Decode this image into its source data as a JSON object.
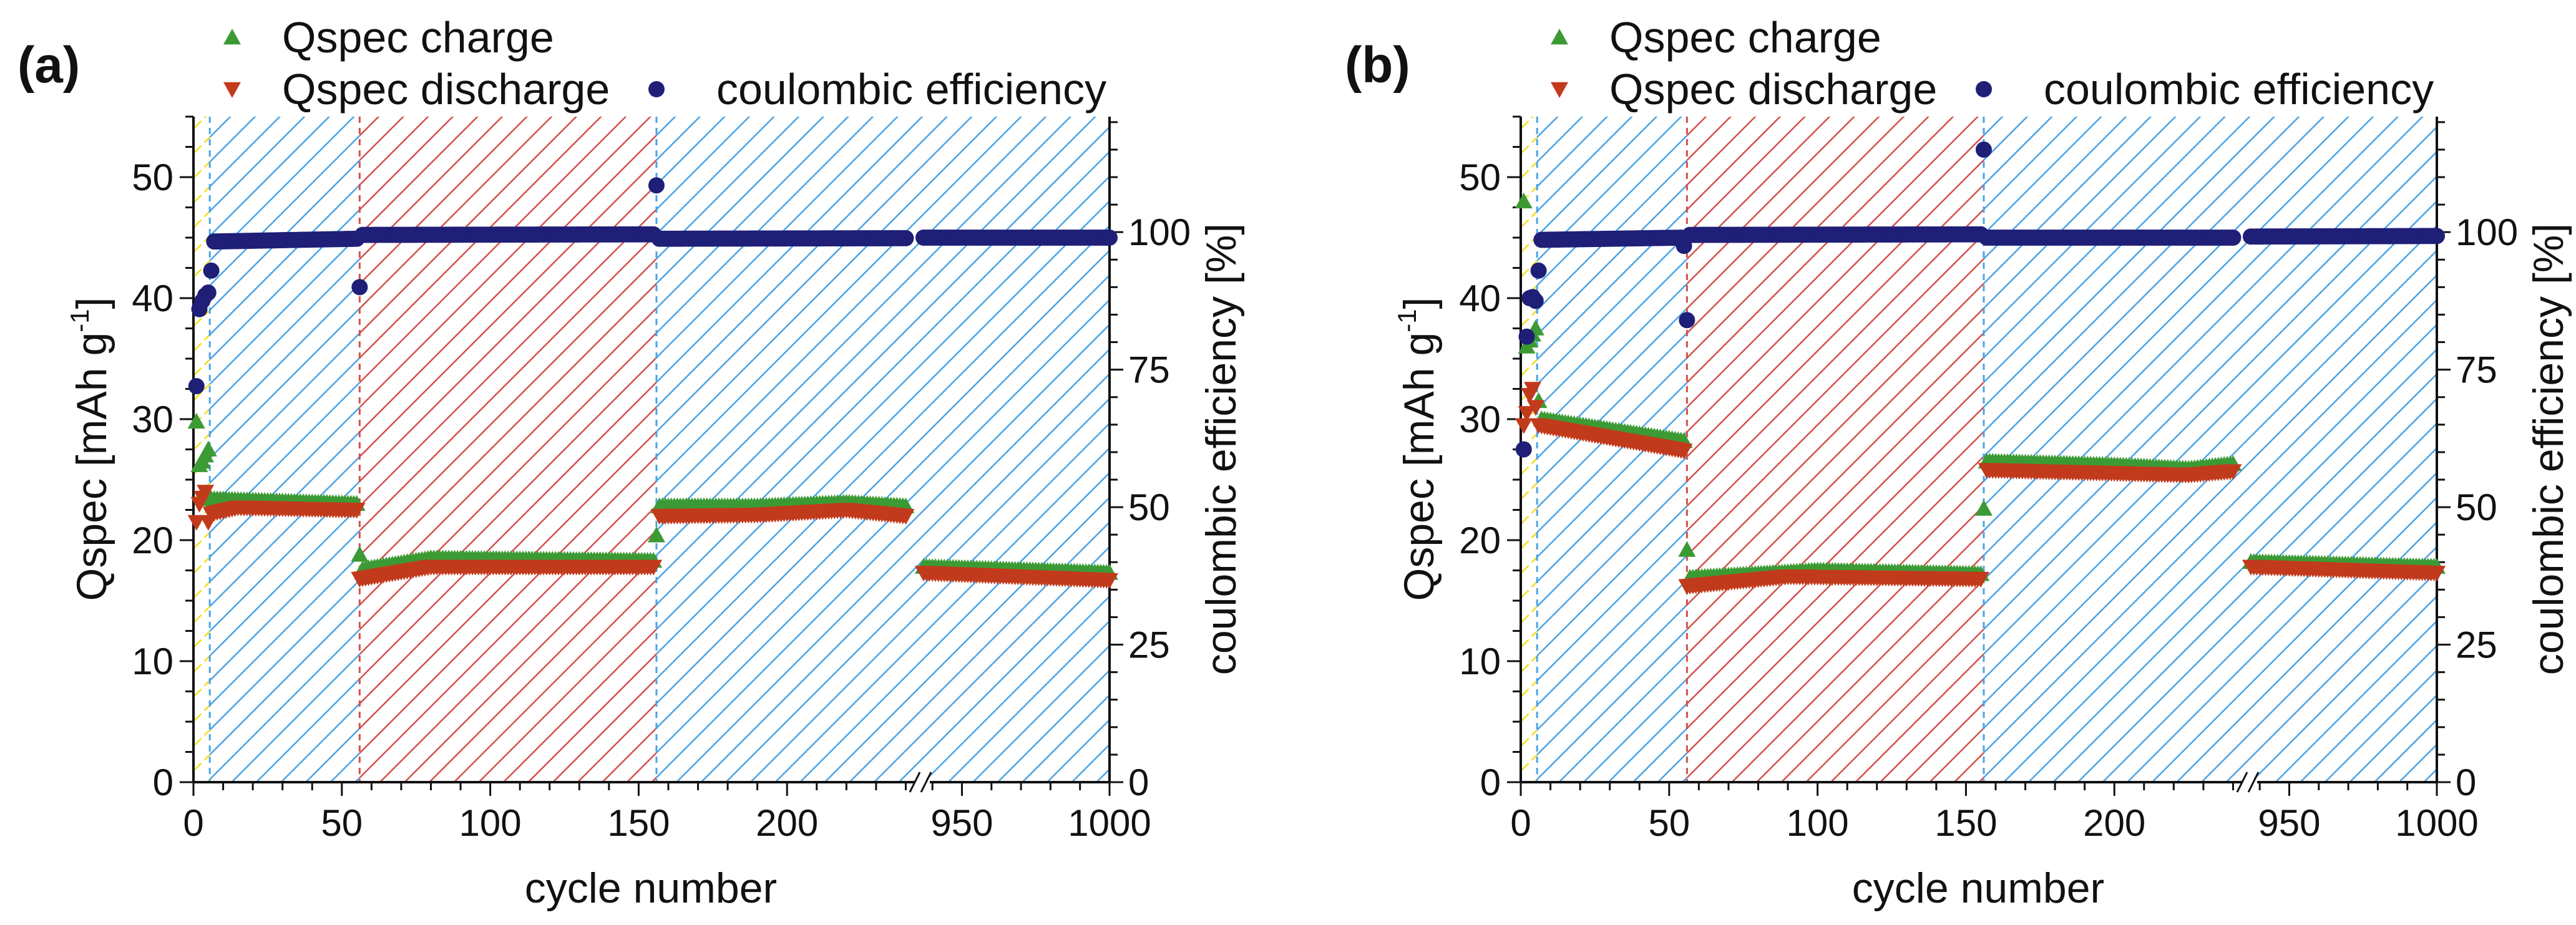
{
  "chart_data": [
    {
      "type": "scatter",
      "panel_label": "(a)",
      "xlabel": "cycle number",
      "ylabel_main": "Qspec [mAh g",
      "ylabel_sup": "-1",
      "ylabel_end": "]",
      "y2label": "coulombic efficiency [%]",
      "ylim": [
        0,
        55
      ],
      "y2lim": [
        0,
        121
      ],
      "x_segments": [
        [
          0,
          246
        ],
        [
          937,
          1000
        ]
      ],
      "x_ticks": [
        0,
        50,
        100,
        150,
        200,
        950,
        1000
      ],
      "y_ticks": [
        0,
        10,
        20,
        30,
        40,
        50
      ],
      "y2_ticks": [
        0,
        25,
        50,
        75,
        100
      ],
      "legend": [
        "Qspec charge",
        "Qspec discharge",
        "coulombic efficiency"
      ],
      "legend_placement": "top",
      "regions": [
        {
          "from": 0,
          "to": 5.5,
          "color": "#f2de1a"
        },
        {
          "from": 5.5,
          "to": 56,
          "color": "#4aa3e6"
        },
        {
          "from": 56,
          "to": 156,
          "color": "#d2504a"
        },
        {
          "from": 156,
          "to": 1000,
          "color": "#4aa3e6"
        }
      ],
      "series": [
        {
          "name": "Qspec charge",
          "marker": "triangle-up",
          "color": "#3c9a34",
          "axis": "left",
          "runs": [
            [
              [
                1,
                29.8
              ],
              [
                2,
                26.2
              ],
              [
                3,
                26.5
              ],
              [
                4,
                27
              ],
              [
                5,
                27.5
              ]
            ],
            [
              [
                6,
                23.4
              ],
              [
                55,
                23.0
              ]
            ],
            [
              [
                56,
                18.8
              ]
            ],
            [
              [
                57,
                17.6
              ],
              [
                80,
                18.5
              ],
              [
                155,
                18.3
              ]
            ],
            [
              [
                156,
                20.4
              ]
            ],
            [
              [
                157,
                22.8
              ],
              [
                190,
                22.8
              ],
              [
                220,
                23.1
              ],
              [
                240,
                22.8
              ]
            ],
            [
              [
                937,
                17.8
              ],
              [
                1000,
                17.3
              ]
            ]
          ]
        },
        {
          "name": "Qspec discharge",
          "marker": "triangle-down",
          "color": "#c23a1c",
          "axis": "left",
          "runs": [
            [
              [
                1,
                21.5
              ],
              [
                2,
                23
              ],
              [
                3,
                23.5
              ],
              [
                4,
                24
              ],
              [
                5,
                21.5
              ]
            ],
            [
              [
                6,
                22.2
              ],
              [
                15,
                22.7
              ],
              [
                55,
                22.5
              ]
            ],
            [
              [
                56,
                16.8
              ],
              [
                80,
                17.8
              ],
              [
                155,
                17.8
              ]
            ],
            [
              [
                157,
                22.0
              ],
              [
                190,
                22.1
              ],
              [
                220,
                22.5
              ],
              [
                240,
                22.0
              ]
            ],
            [
              [
                937,
                17.3
              ],
              [
                1000,
                16.7
              ]
            ]
          ]
        },
        {
          "name": "coulombic efficiency",
          "marker": "circle",
          "color": "#1f1f78",
          "axis": "right",
          "runs": [
            [
              [
                1,
                72
              ],
              [
                2,
                86
              ],
              [
                3,
                87.5
              ],
              [
                4,
                88.5
              ],
              [
                5,
                89
              ],
              [
                6,
                93
              ]
            ],
            [
              [
                7,
                98.3
              ],
              [
                55,
                98.8
              ]
            ],
            [
              [
                56,
                90
              ]
            ],
            [
              [
                57,
                99.5
              ],
              [
                155,
                99.6
              ]
            ],
            [
              [
                156,
                108.5
              ]
            ],
            [
              [
                157,
                98.8
              ],
              [
                240,
                98.9
              ]
            ],
            [
              [
                937,
                99
              ],
              [
                1000,
                99
              ]
            ]
          ]
        }
      ]
    },
    {
      "type": "scatter",
      "panel_label": "(b)",
      "xlabel": "cycle number",
      "ylabel_main": "Qspec [mAh g",
      "ylabel_sup": "-1",
      "ylabel_end": "]",
      "y2label": "coulombic efficiency [%]",
      "ylim": [
        0,
        55
      ],
      "y2lim": [
        0,
        121
      ],
      "x_segments": [
        [
          0,
          246
        ],
        [
          937,
          1000
        ]
      ],
      "x_ticks": [
        0,
        50,
        100,
        150,
        200,
        950,
        1000
      ],
      "y_ticks": [
        0,
        10,
        20,
        30,
        40,
        50
      ],
      "y2_ticks": [
        0,
        25,
        50,
        75,
        100
      ],
      "legend": [
        "Qspec charge",
        "Qspec discharge",
        "coulombic efficiency"
      ],
      "legend_placement": "top",
      "regions": [
        {
          "from": 0,
          "to": 5.5,
          "color": "#f2de1a"
        },
        {
          "from": 5.5,
          "to": 56,
          "color": "#4aa3e6"
        },
        {
          "from": 56,
          "to": 156,
          "color": "#d2504a"
        },
        {
          "from": 156,
          "to": 1000,
          "color": "#4aa3e6"
        }
      ],
      "series": [
        {
          "name": "Qspec charge",
          "marker": "triangle-up",
          "color": "#3c9a34",
          "axis": "left",
          "runs": [
            [
              [
                1,
                48
              ],
              [
                2,
                36
              ],
              [
                3,
                36.5
              ],
              [
                4,
                37
              ],
              [
                5,
                37.5
              ],
              [
                6,
                31.5
              ]
            ],
            [
              [
                7,
                30
              ],
              [
                55,
                28.2
              ]
            ],
            [
              [
                56,
                19.2
              ]
            ],
            [
              [
                57,
                16.9
              ],
              [
                100,
                17.5
              ],
              [
                155,
                17.2
              ]
            ],
            [
              [
                156,
                22.6
              ]
            ],
            [
              [
                157,
                26.5
              ],
              [
                200,
                26.2
              ],
              [
                225,
                25.9
              ],
              [
                240,
                26.3
              ]
            ],
            [
              [
                937,
                18.2
              ],
              [
                1000,
                17.8
              ]
            ]
          ]
        },
        {
          "name": "Qspec discharge",
          "marker": "triangle-down",
          "color": "#c23a1c",
          "axis": "left",
          "runs": [
            [
              [
                1,
                29.5
              ],
              [
                2,
                30.5
              ],
              [
                3,
                32
              ],
              [
                4,
                32.5
              ],
              [
                5,
                31
              ]
            ],
            [
              [
                6,
                29.5
              ],
              [
                55,
                27.4
              ]
            ],
            [
              [
                56,
                16.2
              ],
              [
                90,
                17.0
              ],
              [
                155,
                16.8
              ]
            ],
            [
              [
                157,
                25.8
              ],
              [
                225,
                25.4
              ],
              [
                240,
                25.7
              ]
            ],
            [
              [
                937,
                17.8
              ],
              [
                1000,
                17.3
              ]
            ]
          ]
        },
        {
          "name": "coulombic efficiency",
          "marker": "circle",
          "color": "#1f1f78",
          "axis": "right",
          "runs": [
            [
              [
                1,
                60.5
              ],
              [
                2,
                81
              ],
              [
                3,
                88
              ],
              [
                4,
                88.2
              ],
              [
                5,
                87.5
              ],
              [
                6,
                93
              ]
            ],
            [
              [
                7,
                98.6
              ],
              [
                54,
                99
              ]
            ],
            [
              [
                55,
                97.5
              ]
            ],
            [
              [
                56,
                84
              ]
            ],
            [
              [
                57,
                99.5
              ],
              [
                155,
                99.6
              ]
            ],
            [
              [
                156,
                115
              ]
            ],
            [
              [
                157,
                99
              ],
              [
                240,
                99
              ]
            ],
            [
              [
                937,
                99.2
              ],
              [
                1000,
                99.3
              ]
            ]
          ]
        }
      ]
    }
  ]
}
